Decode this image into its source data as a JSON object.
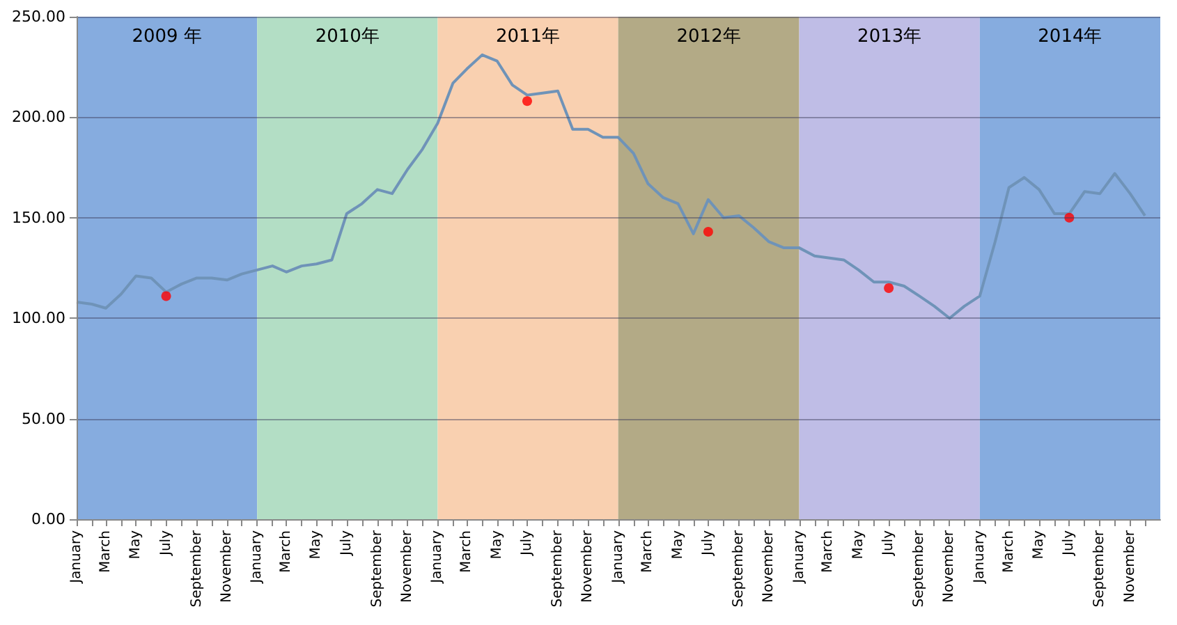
{
  "chart_data": {
    "type": "line",
    "x": [
      "2009-01",
      "2009-02",
      "2009-03",
      "2009-04",
      "2009-05",
      "2009-06",
      "2009-07",
      "2009-08",
      "2009-09",
      "2009-10",
      "2009-11",
      "2009-12",
      "2010-01",
      "2010-02",
      "2010-03",
      "2010-04",
      "2010-05",
      "2010-06",
      "2010-07",
      "2010-08",
      "2010-09",
      "2010-10",
      "2010-11",
      "2010-12",
      "2011-01",
      "2011-02",
      "2011-03",
      "2011-04",
      "2011-05",
      "2011-06",
      "2011-07",
      "2011-08",
      "2011-09",
      "2011-10",
      "2011-11",
      "2011-12",
      "2012-01",
      "2012-02",
      "2012-03",
      "2012-04",
      "2012-05",
      "2012-06",
      "2012-07",
      "2012-08",
      "2012-09",
      "2012-10",
      "2012-11",
      "2012-12",
      "2013-01",
      "2013-02",
      "2013-03",
      "2013-04",
      "2013-05",
      "2013-06",
      "2013-07",
      "2013-08",
      "2013-09",
      "2013-10",
      "2013-11",
      "2013-12",
      "2014-01",
      "2014-02",
      "2014-03",
      "2014-04",
      "2014-05",
      "2014-06",
      "2014-07",
      "2014-08",
      "2014-09",
      "2014-10",
      "2014-11",
      "2014-12"
    ],
    "series": [
      {
        "color": "#6f93b8",
        "marker": "none",
        "values": [
          108,
          107,
          105,
          112,
          121,
          120,
          113,
          117,
          120,
          120,
          119,
          122,
          124,
          126,
          123,
          126,
          127,
          129,
          152,
          157,
          164,
          162,
          174,
          184,
          197,
          217,
          224,
          231,
          228,
          216,
          211,
          212,
          213,
          194,
          194,
          190,
          190,
          182,
          167,
          160,
          157,
          142,
          159,
          150,
          151,
          145,
          138,
          135,
          135,
          131,
          130,
          129,
          124,
          118,
          118,
          116,
          111,
          106,
          100,
          106,
          111,
          138,
          165,
          170,
          164,
          152,
          152,
          163,
          162,
          172,
          162,
          151
        ]
      },
      {
        "type": "scatter",
        "color": "#ff0000",
        "marker": "circle",
        "x": [
          "2009-07",
          "2011-07",
          "2012-07",
          "2013-07",
          "2014-07"
        ],
        "values": [
          111,
          208,
          143,
          115,
          150
        ]
      }
    ],
    "xlim": [
      "2009-01",
      "2015-01"
    ],
    "xticks": [
      {
        "value": "2009-01",
        "label": "January"
      },
      {
        "value": "2009-02",
        "label": null
      },
      {
        "value": "2009-03",
        "label": "March"
      },
      {
        "value": "2009-04",
        "label": null
      },
      {
        "value": "2009-05",
        "label": "May"
      },
      {
        "value": "2009-06",
        "label": null
      },
      {
        "value": "2009-07",
        "label": "July"
      },
      {
        "value": "2009-08",
        "label": null
      },
      {
        "value": "2009-09",
        "label": "September"
      },
      {
        "value": "2009-10",
        "label": null
      },
      {
        "value": "2009-11",
        "label": "November"
      },
      {
        "value": "2009-12",
        "label": null
      },
      {
        "value": "2010-01",
        "label": "January"
      },
      {
        "value": "2010-02",
        "label": null
      },
      {
        "value": "2010-03",
        "label": "March"
      },
      {
        "value": "2010-04",
        "label": null
      },
      {
        "value": "2010-05",
        "label": "May"
      },
      {
        "value": "2010-06",
        "label": null
      },
      {
        "value": "2010-07",
        "label": "July"
      },
      {
        "value": "2010-08",
        "label": null
      },
      {
        "value": "2010-09",
        "label": "September"
      },
      {
        "value": "2010-10",
        "label": null
      },
      {
        "value": "2010-11",
        "label": "November"
      },
      {
        "value": "2010-12",
        "label": null
      },
      {
        "value": "2011-01",
        "label": "January"
      },
      {
        "value": "2011-02",
        "label": null
      },
      {
        "value": "2011-03",
        "label": "March"
      },
      {
        "value": "2011-04",
        "label": null
      },
      {
        "value": "2011-05",
        "label": "May"
      },
      {
        "value": "2011-06",
        "label": null
      },
      {
        "value": "2011-07",
        "label": "July"
      },
      {
        "value": "2011-08",
        "label": null
      },
      {
        "value": "2011-09",
        "label": "September"
      },
      {
        "value": "2011-10",
        "label": null
      },
      {
        "value": "2011-11",
        "label": "November"
      },
      {
        "value": "2011-12",
        "label": null
      },
      {
        "value": "2012-01",
        "label": "January"
      },
      {
        "value": "2012-02",
        "label": null
      },
      {
        "value": "2012-03",
        "label": "March"
      },
      {
        "value": "2012-04",
        "label": null
      },
      {
        "value": "2012-05",
        "label": "May"
      },
      {
        "value": "2012-06",
        "label": null
      },
      {
        "value": "2012-07",
        "label": "July"
      },
      {
        "value": "2012-08",
        "label": null
      },
      {
        "value": "2012-09",
        "label": "September"
      },
      {
        "value": "2012-10",
        "label": null
      },
      {
        "value": "2012-11",
        "label": "November"
      },
      {
        "value": "2012-12",
        "label": null
      },
      {
        "value": "2013-01",
        "label": "January"
      },
      {
        "value": "2013-02",
        "label": null
      },
      {
        "value": "2013-03",
        "label": "March"
      },
      {
        "value": "2013-04",
        "label": null
      },
      {
        "value": "2013-05",
        "label": "May"
      },
      {
        "value": "2013-06",
        "label": null
      },
      {
        "value": "2013-07",
        "label": "July"
      },
      {
        "value": "2013-08",
        "label": null
      },
      {
        "value": "2013-09",
        "label": "September"
      },
      {
        "value": "2013-10",
        "label": null
      },
      {
        "value": "2013-11",
        "label": "November"
      },
      {
        "value": "2013-12",
        "label": null
      },
      {
        "value": "2014-01",
        "label": "January"
      },
      {
        "value": "2014-02",
        "label": null
      },
      {
        "value": "2014-03",
        "label": "March"
      },
      {
        "value": "2014-04",
        "label": null
      },
      {
        "value": "2014-05",
        "label": "May"
      },
      {
        "value": "2014-06",
        "label": null
      },
      {
        "value": "2014-07",
        "label": "July"
      },
      {
        "value": "2014-08",
        "label": null
      },
      {
        "value": "2014-09",
        "label": "September"
      },
      {
        "value": "2014-10",
        "label": null
      },
      {
        "value": "2014-11",
        "label": "November"
      },
      {
        "value": "2014-12",
        "label": null
      }
    ],
    "ylim": [
      0,
      250
    ],
    "yticks": [
      {
        "value": 0,
        "label": "0.00"
      },
      {
        "value": 50,
        "label": "50.00"
      },
      {
        "value": 100,
        "label": "100.00"
      },
      {
        "value": 150,
        "label": "150.00"
      },
      {
        "value": 200,
        "label": "200.00"
      },
      {
        "value": 250,
        "label": "250.00"
      }
    ],
    "grid": "y",
    "bands": [
      {
        "axis": "x",
        "from": "2009-01",
        "to": "2010-01",
        "label": "2009 年",
        "color": "#86acdf"
      },
      {
        "axis": "x",
        "from": "2010-01",
        "to": "2011-01",
        "label": "2010年",
        "color": "#b3dec5"
      },
      {
        "axis": "x",
        "from": "2011-01",
        "to": "2012-01",
        "label": "2011年",
        "color": "#f9d0b0"
      },
      {
        "axis": "x",
        "from": "2012-01",
        "to": "2013-01",
        "label": "2012年",
        "color": "#b3aa86"
      },
      {
        "axis": "x",
        "from": "2013-01",
        "to": "2014-01",
        "label": "2013年",
        "color": "#bfbde6"
      },
      {
        "axis": "x",
        "from": "2014-01",
        "to": "2015-01",
        "label": "2014年",
        "color": "#86acdf"
      }
    ]
  }
}
